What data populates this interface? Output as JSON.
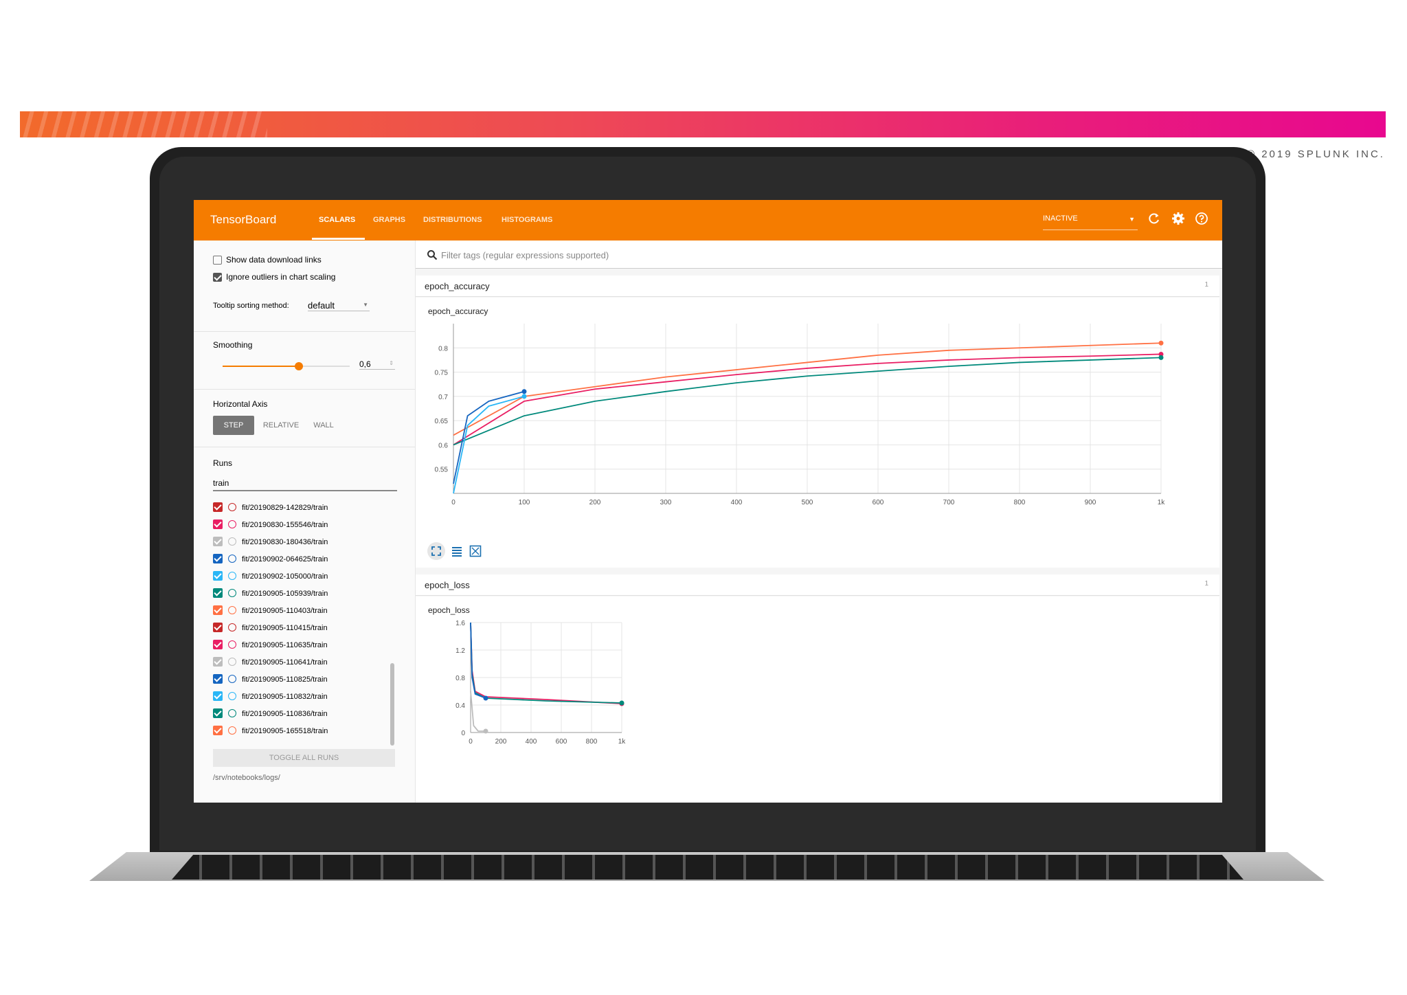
{
  "branding": {
    "copyright": "© 2019 SPLUNK INC."
  },
  "header": {
    "title": "TensorBoard",
    "tabs": [
      "SCALARS",
      "GRAPHS",
      "DISTRIBUTIONS",
      "HISTOGRAMS"
    ],
    "active_tab": "SCALARS",
    "status": "INACTIVE"
  },
  "sidebar": {
    "show_download_links": "Show data download links",
    "ignore_outliers": "Ignore outliers in chart scaling",
    "tooltip_label": "Tooltip sorting method:",
    "tooltip_value": "default",
    "smoothing_label": "Smoothing",
    "smoothing_value": "0,6",
    "smoothing_fraction": 0.6,
    "horizontal_axis_label": "Horizontal Axis",
    "axis_options": [
      "STEP",
      "RELATIVE",
      "WALL"
    ],
    "runs_label": "Runs",
    "runs_filter": "train",
    "runs": [
      {
        "name": "fit/20190829-142829/train",
        "color": "#c62828"
      },
      {
        "name": "fit/20190830-155546/train",
        "color": "#e91e63"
      },
      {
        "name": "fit/20190830-180436/train",
        "color": "#bdbdbd"
      },
      {
        "name": "fit/20190902-064625/train",
        "color": "#1565c0"
      },
      {
        "name": "fit/20190902-105000/train",
        "color": "#29b6f6"
      },
      {
        "name": "fit/20190905-105939/train",
        "color": "#00897b"
      },
      {
        "name": "fit/20190905-110403/train",
        "color": "#ff7043"
      },
      {
        "name": "fit/20190905-110415/train",
        "color": "#c62828"
      },
      {
        "name": "fit/20190905-110635/train",
        "color": "#e91e63"
      },
      {
        "name": "fit/20190905-110641/train",
        "color": "#bdbdbd"
      },
      {
        "name": "fit/20190905-110825/train",
        "color": "#1565c0"
      },
      {
        "name": "fit/20190905-110832/train",
        "color": "#29b6f6"
      },
      {
        "name": "fit/20190905-110836/train",
        "color": "#00897b"
      },
      {
        "name": "fit/20190905-165518/train",
        "color": "#ff7043"
      }
    ],
    "toggle_all": "TOGGLE ALL RUNS",
    "logdir": "/srv/notebooks/logs/"
  },
  "main": {
    "filter_placeholder": "Filter tags (regular expressions supported)",
    "cards": [
      {
        "title": "epoch_accuracy",
        "count": "1"
      },
      {
        "title": "epoch_loss",
        "count": "1"
      }
    ]
  },
  "chart_data": [
    {
      "type": "line",
      "title": "epoch_accuracy",
      "xlim": [
        0,
        1000
      ],
      "ylim": [
        0.5,
        0.85
      ],
      "x_ticks": [
        "0",
        "100",
        "200",
        "300",
        "400",
        "500",
        "600",
        "700",
        "800",
        "900",
        "1k"
      ],
      "y_ticks": [
        "0.55",
        "0.6",
        "0.65",
        "0.7",
        "0.75",
        "0.8"
      ],
      "grid": true,
      "series": [
        {
          "color": "#ff7043",
          "x": [
            0,
            100,
            200,
            300,
            400,
            500,
            600,
            700,
            800,
            900,
            1000
          ],
          "values": [
            0.62,
            0.7,
            0.72,
            0.74,
            0.755,
            0.77,
            0.785,
            0.795,
            0.8,
            0.805,
            0.81
          ]
        },
        {
          "color": "#e91e63",
          "x": [
            0,
            100,
            200,
            300,
            400,
            500,
            600,
            700,
            800,
            900,
            1000
          ],
          "values": [
            0.6,
            0.69,
            0.715,
            0.73,
            0.745,
            0.758,
            0.768,
            0.775,
            0.78,
            0.783,
            0.787
          ]
        },
        {
          "color": "#00897b",
          "x": [
            0,
            100,
            200,
            300,
            400,
            500,
            600,
            700,
            800,
            900,
            1000
          ],
          "values": [
            0.6,
            0.66,
            0.69,
            0.71,
            0.728,
            0.742,
            0.752,
            0.762,
            0.77,
            0.775,
            0.78
          ]
        },
        {
          "color": "#1565c0",
          "x": [
            0,
            20,
            50,
            100
          ],
          "values": [
            0.52,
            0.66,
            0.69,
            0.71
          ]
        },
        {
          "color": "#29b6f6",
          "x": [
            0,
            20,
            50,
            100
          ],
          "values": [
            0.5,
            0.64,
            0.68,
            0.7
          ]
        }
      ]
    },
    {
      "type": "line",
      "title": "epoch_loss",
      "xlim": [
        0,
        1000
      ],
      "ylim": [
        0,
        1.6
      ],
      "x_ticks": [
        "0",
        "200",
        "400",
        "600",
        "800",
        "1k"
      ],
      "y_ticks": [
        "0",
        "0.4",
        "0.8",
        "1.2",
        "1.6"
      ],
      "grid": true,
      "series": [
        {
          "color": "#e91e63",
          "x": [
            0,
            10,
            30,
            100,
            300,
            500,
            1000
          ],
          "values": [
            1.6,
            0.9,
            0.6,
            0.52,
            0.5,
            0.48,
            0.42
          ]
        },
        {
          "color": "#00897b",
          "x": [
            0,
            10,
            30,
            100,
            300,
            500,
            1000
          ],
          "values": [
            1.6,
            0.85,
            0.58,
            0.5,
            0.48,
            0.46,
            0.43
          ]
        },
        {
          "color": "#1565c0",
          "x": [
            0,
            10,
            30,
            100
          ],
          "values": [
            1.6,
            0.8,
            0.56,
            0.5
          ]
        },
        {
          "color": "#bdbdbd",
          "x": [
            0,
            20,
            50,
            100
          ],
          "values": [
            0.6,
            0.1,
            0.02,
            0.02
          ]
        }
      ]
    }
  ]
}
